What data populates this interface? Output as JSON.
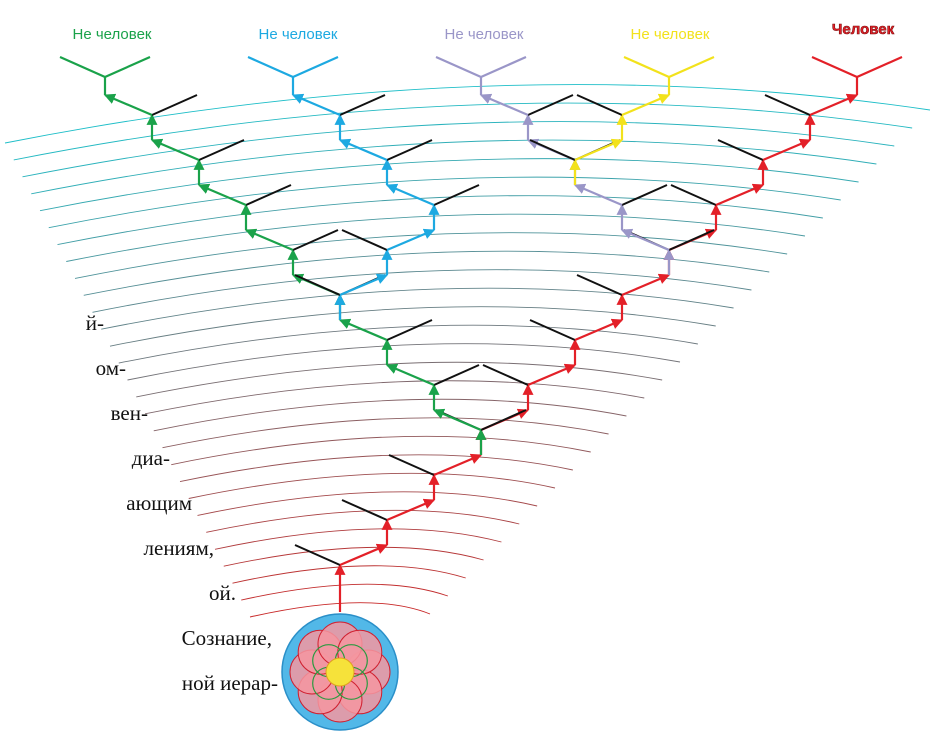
{
  "labels": [
    "Не человек",
    "Не человек",
    "Не человек",
    "Не человек",
    "Человек"
  ],
  "text_lines": [
    "й-",
    "ом-",
    "вен-",
    "диа-",
    "ающим",
    "лениям,",
    "ой.",
    "Сознание,",
    "ной иерар-"
  ]
}
